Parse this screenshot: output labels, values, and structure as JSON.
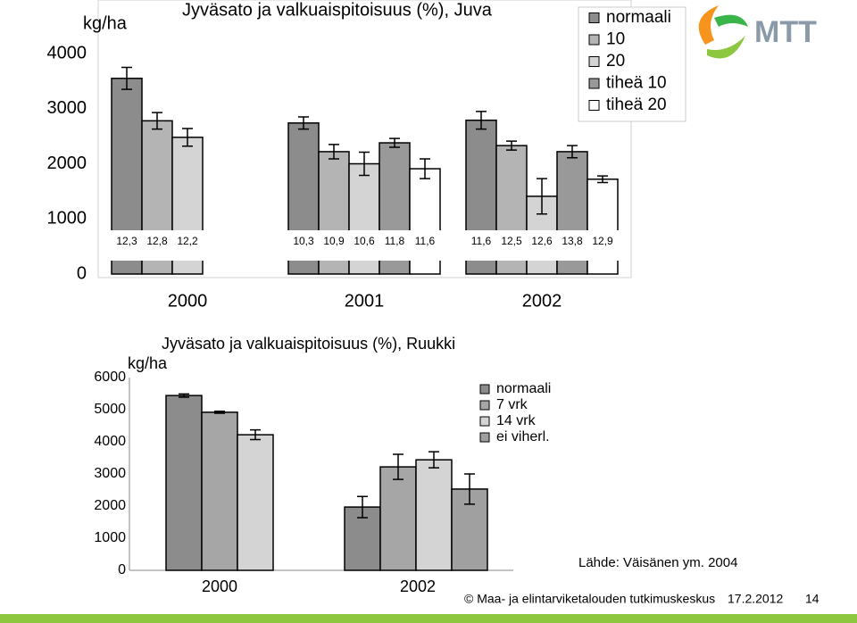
{
  "chart_data": [
    {
      "type": "bar",
      "title": "Jyväsato ja valkuaispitoisuus (%), Juva",
      "y_label": "kg/ha",
      "categories": [
        "2000",
        "2001",
        "2002"
      ],
      "series": [
        {
          "name": "normaali",
          "color": "#8c8c8c",
          "values": [
            3550,
            2740,
            2790
          ],
          "errors": [
            200,
            110,
            160
          ],
          "protein_labels": [
            "12,3",
            "10,3",
            "11,6"
          ]
        },
        {
          "name": "10",
          "color": "#b4b4b4",
          "values": [
            2780,
            2220,
            2330
          ],
          "errors": [
            150,
            130,
            80
          ],
          "protein_labels": [
            "12,8",
            "10,9",
            "12,5"
          ]
        },
        {
          "name": "20",
          "color": "#d4d4d4",
          "values": [
            2480,
            2000,
            1410
          ],
          "errors": [
            160,
            210,
            320
          ],
          "protein_labels": [
            "12,2",
            "10,6",
            "12,6"
          ]
        },
        {
          "name": "tiheä 10",
          "color": "#999999",
          "values": [
            null,
            2380,
            2220
          ],
          "errors": [
            null,
            80,
            110
          ],
          "protein_labels": [
            null,
            "11,8",
            "13,8"
          ]
        },
        {
          "name": "tiheä 20",
          "color": "#ffffff",
          "values": [
            null,
            1910,
            1720
          ],
          "errors": [
            null,
            180,
            60
          ],
          "protein_labels": [
            null,
            "11,6",
            "12,9"
          ]
        }
      ],
      "ylim": [
        0,
        4000
      ],
      "yticks": [
        0,
        1000,
        2000,
        3000,
        4000
      ],
      "legend": "top-right"
    },
    {
      "type": "bar",
      "title": "Jyväsato ja valkuaispitoisuus (%), Ruukki",
      "y_label": "kg/ha",
      "categories": [
        "2000",
        "2002"
      ],
      "series": [
        {
          "name": "normaali",
          "color": "#8c8c8c",
          "values": [
            5440,
            1970
          ],
          "errors": [
            50,
            330
          ]
        },
        {
          "name": "7 vrk",
          "color": "#a6a6a6",
          "values": [
            4920,
            3220
          ],
          "errors": [
            30,
            390
          ]
        },
        {
          "name": "14 vrk",
          "color": "#d4d4d4",
          "values": [
            4220,
            3440
          ],
          "errors": [
            150,
            250
          ]
        },
        {
          "name": "ei viherl.",
          "color": "#a0a0a0",
          "values": [
            null,
            2530
          ],
          "errors": [
            null,
            470
          ]
        }
      ],
      "ylim": [
        0,
        6000
      ],
      "yticks": [
        0,
        1000,
        2000,
        3000,
        4000,
        5000,
        6000
      ],
      "legend": "top-right"
    }
  ],
  "source": "Lähde: Väisänen ym. 2004",
  "footer": {
    "organization": "© Maa- ja elintarviketalouden tutkimuskeskus",
    "date": "17.2.2012",
    "page": "14"
  },
  "logo": "MTT"
}
